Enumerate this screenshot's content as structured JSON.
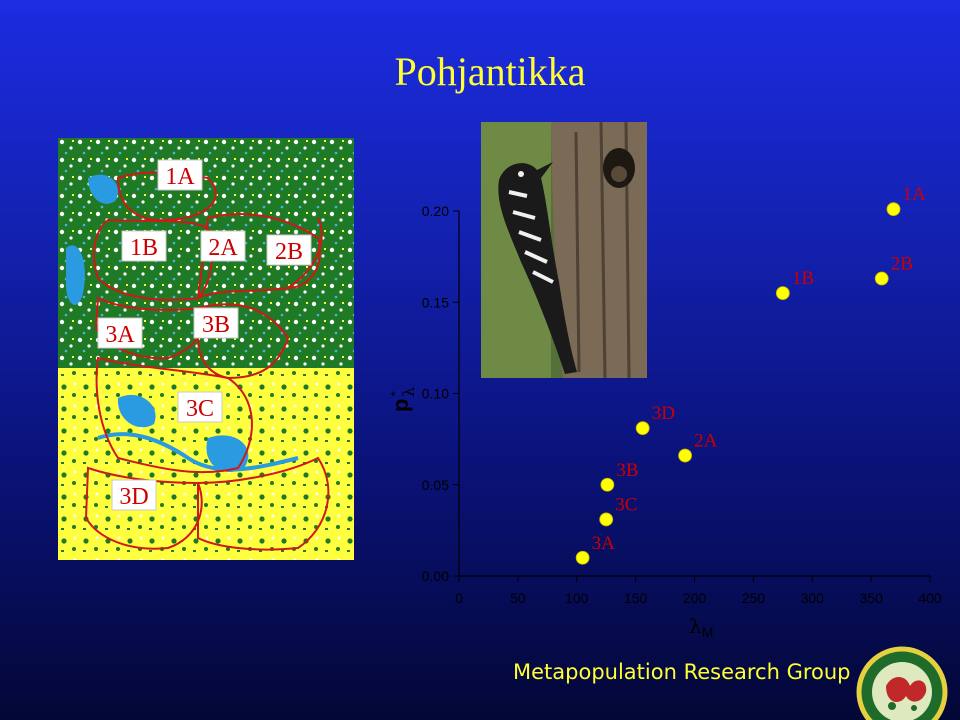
{
  "slide": {
    "title": "Pohjantikka",
    "footer": "Metapopulation Research Group"
  },
  "map": {
    "regions": [
      "1A",
      "1B",
      "2A",
      "2B",
      "3A",
      "3B",
      "3C",
      "3D"
    ]
  },
  "colors": {
    "title": "#ffff33",
    "point_fill": "#ffff00",
    "point_label": "#cc0000",
    "axis": "#000000",
    "map_forest": "#1e7a24",
    "map_open": "#ffff40",
    "map_water": "#2a9be0",
    "map_boundary": "#d01818"
  },
  "chart_data": {
    "type": "scatter",
    "xlabel_symbol": "λ",
    "xlabel_sub": "M",
    "ylabel_main": "p",
    "ylabel_sup": "*",
    "ylabel_sub": "λ",
    "xlim": [
      0,
      400
    ],
    "ylim": [
      0,
      0.2
    ],
    "x_ticks": [
      {
        "value": 0,
        "label": "0"
      },
      {
        "value": 50,
        "label": "50"
      },
      {
        "value": 100,
        "label": "100"
      },
      {
        "value": 150,
        "label": "150"
      },
      {
        "value": 200,
        "label": "200"
      },
      {
        "value": 250,
        "label": "250"
      },
      {
        "value": 300,
        "label": "300"
      },
      {
        "value": 350,
        "label": "350"
      },
      {
        "value": 400,
        "label": "400"
      }
    ],
    "y_ticks": [
      {
        "value": 0,
        "label": "0.00"
      },
      {
        "value": 0.05,
        "label": "0.05"
      },
      {
        "value": 0.1,
        "label": "0.10"
      },
      {
        "value": 0.15,
        "label": "0.15"
      },
      {
        "value": 0.2,
        "label": "0.20"
      }
    ],
    "points": [
      {
        "label": "1A",
        "x": 369,
        "y": 0.201
      },
      {
        "label": "2B",
        "x": 359,
        "y": 0.163
      },
      {
        "label": "1B",
        "x": 275,
        "y": 0.155
      },
      {
        "label": "3D",
        "x": 156,
        "y": 0.081
      },
      {
        "label": "2A",
        "x": 192,
        "y": 0.066
      },
      {
        "label": "3B",
        "x": 126,
        "y": 0.05
      },
      {
        "label": "3C",
        "x": 125,
        "y": 0.031
      },
      {
        "label": "3A",
        "x": 105,
        "y": 0.01
      }
    ]
  }
}
